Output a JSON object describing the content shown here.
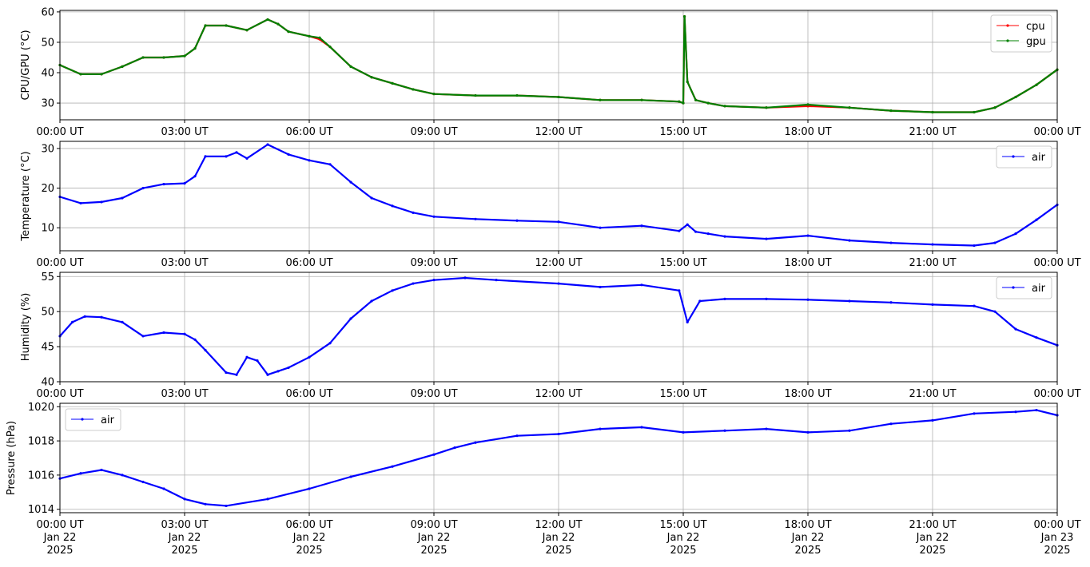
{
  "chart_data": [
    {
      "type": "line",
      "ylabel": "CPU/GPU (°C)",
      "ylim": [
        24.5,
        60.5
      ],
      "yticks": [
        30,
        40,
        50,
        60
      ],
      "x_domain_hours": [
        0,
        24
      ],
      "xtick_labels": [
        "00:00 UT",
        "03:00 UT",
        "06:00 UT",
        "09:00 UT",
        "12:00 UT",
        "15:00 UT",
        "18:00 UT",
        "21:00 UT",
        "00:00 UT"
      ],
      "grid": true,
      "legend_position": "top-right",
      "series": [
        {
          "name": "cpu",
          "color": "#ff0000",
          "x": [
            0,
            0.5,
            1,
            1.5,
            2,
            2.5,
            3,
            3.25,
            3.5,
            4,
            4.5,
            5,
            5.25,
            5.5,
            6,
            6.25,
            6.5,
            7,
            7.5,
            8,
            8.5,
            9,
            10,
            11,
            12,
            13,
            14,
            14.9,
            15,
            15.03,
            15.1,
            15.3,
            15.6,
            16,
            17,
            18,
            19,
            20,
            21,
            22,
            22.5,
            23,
            23.5,
            24
          ],
          "y": [
            42.5,
            39.5,
            39.5,
            42,
            45,
            45,
            45.5,
            48,
            55.5,
            55.5,
            54,
            57.5,
            56,
            53.5,
            52,
            51,
            48.5,
            42,
            38.5,
            36.5,
            34.5,
            33,
            32.5,
            32.5,
            32,
            31,
            31,
            30.5,
            30,
            58.5,
            37,
            31,
            30,
            29,
            28.5,
            29,
            28.5,
            27.5,
            27,
            27,
            28.5,
            32,
            36,
            41
          ]
        },
        {
          "name": "gpu",
          "color": "#008000",
          "x": [
            0,
            0.5,
            1,
            1.5,
            2,
            2.5,
            3,
            3.25,
            3.5,
            4,
            4.5,
            5,
            5.25,
            5.5,
            6,
            6.25,
            6.5,
            7,
            7.5,
            8,
            8.5,
            9,
            10,
            11,
            12,
            13,
            14,
            14.9,
            15,
            15.03,
            15.1,
            15.3,
            15.6,
            16,
            17,
            18,
            19,
            20,
            21,
            22,
            22.5,
            23,
            23.5,
            24
          ],
          "y": [
            42.5,
            39.5,
            39.5,
            42,
            45,
            45,
            45.5,
            48,
            55.5,
            55.5,
            54,
            57.5,
            56,
            53.5,
            52,
            51.5,
            48.5,
            42,
            38.5,
            36.5,
            34.5,
            33,
            32.5,
            32.5,
            32,
            31,
            31,
            30.5,
            30,
            58.5,
            37,
            31,
            30,
            29,
            28.5,
            29.5,
            28.5,
            27.5,
            27,
            27,
            28.5,
            32,
            36,
            41
          ]
        }
      ]
    },
    {
      "type": "line",
      "ylabel": "Temperature (°C)",
      "ylim": [
        4.2,
        31.8
      ],
      "yticks": [
        10,
        20,
        30
      ],
      "x_domain_hours": [
        0,
        24
      ],
      "xtick_labels": [
        "00:00 UT",
        "03:00 UT",
        "06:00 UT",
        "09:00 UT",
        "12:00 UT",
        "15:00 UT",
        "18:00 UT",
        "21:00 UT",
        "00:00 UT"
      ],
      "grid": true,
      "legend_position": "top-right",
      "series": [
        {
          "name": "air",
          "color": "#0000ff",
          "x": [
            0,
            0.5,
            1,
            1.5,
            2,
            2.5,
            3,
            3.25,
            3.5,
            4,
            4.25,
            4.5,
            5,
            5.5,
            6,
            6.5,
            7,
            7.5,
            8,
            8.5,
            9,
            10,
            11,
            12,
            13,
            14,
            14.9,
            15.1,
            15.3,
            15.6,
            16,
            17,
            18,
            19,
            20,
            21,
            22,
            22.5,
            23,
            23.5,
            24
          ],
          "y": [
            17.8,
            16.2,
            16.5,
            17.5,
            20,
            21,
            21.2,
            23,
            28,
            28,
            29,
            27.5,
            31,
            28.5,
            27,
            26,
            21.5,
            17.5,
            15.5,
            13.8,
            12.8,
            12.2,
            11.8,
            11.5,
            10,
            10.5,
            9.2,
            10.8,
            9,
            8.5,
            7.8,
            7.2,
            8,
            6.8,
            6.2,
            5.8,
            5.5,
            6.2,
            8.5,
            12,
            15.8
          ]
        }
      ]
    },
    {
      "type": "line",
      "ylabel": "Humidity (%)",
      "ylim": [
        40,
        55.6
      ],
      "yticks": [
        40,
        45,
        50,
        55
      ],
      "x_domain_hours": [
        0,
        24
      ],
      "xtick_labels": [
        "00:00 UT",
        "03:00 UT",
        "06:00 UT",
        "09:00 UT",
        "12:00 UT",
        "15:00 UT",
        "18:00 UT",
        "21:00 UT",
        "00:00 UT"
      ],
      "grid": true,
      "legend_position": "top-right",
      "series": [
        {
          "name": "air",
          "color": "#0000ff",
          "x": [
            0,
            0.3,
            0.6,
            1,
            1.5,
            2,
            2.5,
            3,
            3.25,
            3.5,
            4,
            4.25,
            4.5,
            4.75,
            5,
            5.25,
            5.5,
            6,
            6.5,
            7,
            7.5,
            8,
            8.5,
            9,
            9.75,
            10.5,
            12,
            13,
            14,
            14.9,
            15.1,
            15.4,
            16,
            17,
            18,
            19,
            20,
            21,
            22,
            22.5,
            23,
            23.5,
            24
          ],
          "y": [
            46.5,
            48.5,
            49.3,
            49.2,
            48.5,
            46.5,
            47,
            46.8,
            46,
            44.5,
            41.3,
            41,
            43.5,
            43,
            41,
            41.5,
            42,
            43.5,
            45.5,
            49,
            51.5,
            53,
            54,
            54.5,
            54.8,
            54.5,
            54,
            53.5,
            53.8,
            53,
            48.5,
            51.5,
            51.8,
            51.8,
            51.7,
            51.5,
            51.3,
            51,
            50.8,
            50,
            47.5,
            46.3,
            45.2
          ]
        }
      ]
    },
    {
      "type": "line",
      "ylabel": "Pressure (hPa)",
      "ylim": [
        1013.8,
        1020.2
      ],
      "yticks": [
        1014,
        1016,
        1018,
        1020
      ],
      "ytick_labels": [
        "1014",
        "1016",
        "1018",
        "1020"
      ],
      "x_domain_hours": [
        0,
        24
      ],
      "xtick_labels": [
        "00:00 UT",
        "03:00 UT",
        "06:00 UT",
        "09:00 UT",
        "12:00 UT",
        "15:00 UT",
        "18:00 UT",
        "21:00 UT",
        "00:00 UT"
      ],
      "xtick_date_labels": [
        "Jan 22",
        "Jan 22",
        "Jan 22",
        "Jan 22",
        "Jan 22",
        "Jan 22",
        "Jan 22",
        "Jan 22",
        "Jan 23"
      ],
      "xtick_year_labels": [
        "2025",
        "2025",
        "2025",
        "2025",
        "2025",
        "2025",
        "2025",
        "2025",
        "2025"
      ],
      "grid": true,
      "legend_position": "top-left",
      "series": [
        {
          "name": "air",
          "color": "#0000ff",
          "x": [
            0,
            0.5,
            1,
            1.5,
            2,
            2.5,
            3,
            3.5,
            4,
            5,
            6,
            7,
            8,
            9,
            9.5,
            10,
            11,
            12,
            13,
            14,
            15,
            16,
            17,
            18,
            19,
            20,
            21,
            22,
            23,
            23.5,
            24
          ],
          "y": [
            1015.8,
            1016.1,
            1016.3,
            1016,
            1015.6,
            1015.2,
            1014.6,
            1014.3,
            1014.2,
            1014.6,
            1015.2,
            1015.9,
            1016.5,
            1017.2,
            1017.6,
            1017.9,
            1018.3,
            1018.4,
            1018.7,
            1018.8,
            1018.5,
            1018.6,
            1018.7,
            1018.5,
            1018.6,
            1019,
            1019.2,
            1019.6,
            1019.7,
            1019.8,
            1019.5
          ]
        }
      ]
    }
  ]
}
